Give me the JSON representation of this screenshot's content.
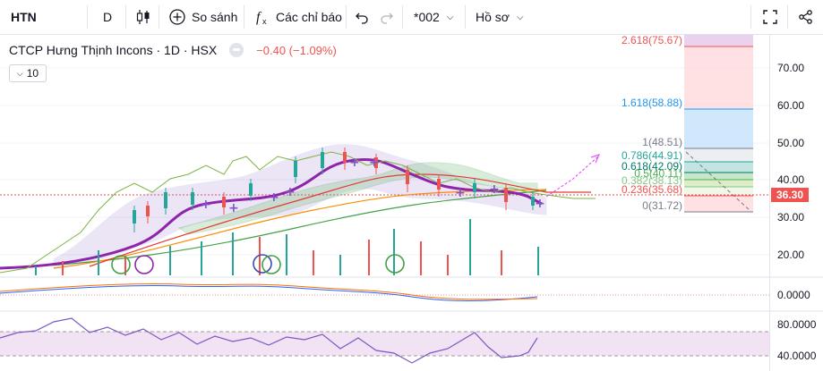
{
  "toolbar": {
    "symbol": "HTN",
    "interval": "D",
    "compare_label": "So sánh",
    "indicators_label": "Các chỉ báo",
    "layout_label": "*002",
    "profile_label": "Hồ sơ"
  },
  "legend": {
    "title": "CTCP Hưng Thịnh Incons · 1D · HSX",
    "change": "−0.40 (−1.09%)",
    "collapse_count": "10"
  },
  "price_axis": {
    "labels": [
      "70.00",
      "60.00",
      "50.00",
      "40.00",
      "30.00",
      "20.00"
    ],
    "current_price": "36.30"
  },
  "fib_levels": [
    {
      "label": "2.618(75.67)",
      "color": "#ef5350"
    },
    {
      "label": "1.618(58.88)",
      "color": "#2196f3"
    },
    {
      "label": "1(48.51)",
      "color": "#787b86"
    },
    {
      "label": "0.786(44.91)",
      "color": "#26a69a"
    },
    {
      "label": "0.618(42.09)",
      "color": "#00796b"
    },
    {
      "label": "0.5(40.11)",
      "color": "#4caf50"
    },
    {
      "label": "0.382(38.13)",
      "color": "#81c784"
    },
    {
      "label": "0.236(35.68)",
      "color": "#ef5350"
    },
    {
      "label": "0(31.72)",
      "color": "#787b86"
    }
  ],
  "macd_axis": {
    "label": "0.0000"
  },
  "rsi_axis": {
    "labels": [
      "80.0000",
      "40.0000"
    ]
  },
  "colors": {
    "up": "#26a69a",
    "down": "#ef5350",
    "accent": "#2962ff",
    "ma": "#9c27b0"
  },
  "icons": [
    "candles-icon",
    "plus-circle-icon",
    "fx-icon",
    "undo-icon",
    "redo-icon",
    "fullscreen-icon",
    "share-icon"
  ]
}
